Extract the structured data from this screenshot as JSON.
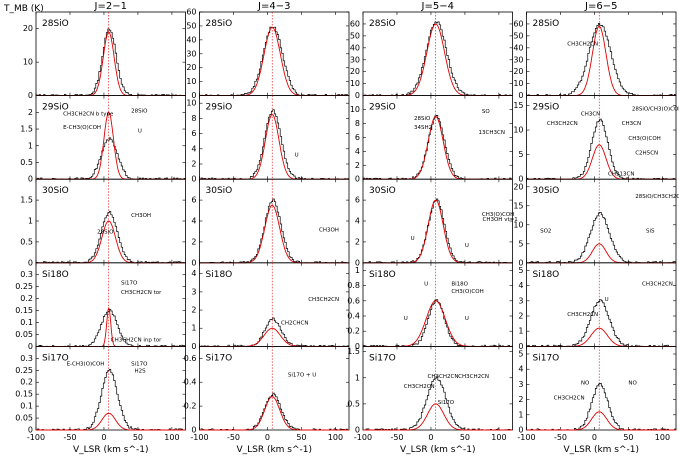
{
  "figure": {
    "ylabel": "T_MB (K)",
    "xlabel": "V_LSR (km s^-1)",
    "xlim": [
      -100,
      120
    ],
    "vsys": 7,
    "columns": [
      "J=2−1",
      "J=4−3",
      "J=5−4",
      "J=6−5"
    ],
    "rows": [
      "28SiO",
      "29SiO",
      "30SiO",
      "Si18O",
      "Si17O"
    ],
    "xticks": [
      -100,
      -50,
      0,
      50,
      100
    ]
  },
  "chart_data": [
    {
      "type": "line",
      "row": 0,
      "col": 0,
      "molecule": "28SiO",
      "ylim": [
        0,
        25
      ],
      "yticks": [
        0,
        10,
        20
      ],
      "observed": {
        "amp": 20,
        "width": 10
      },
      "model": {
        "amp": 19,
        "width": 8
      },
      "annotations": []
    },
    {
      "type": "line",
      "row": 0,
      "col": 1,
      "molecule": "28SiO",
      "ylim": [
        0,
        60
      ],
      "yticks": [
        0,
        10,
        20,
        30,
        40,
        50,
        60
      ],
      "observed": {
        "amp": 50,
        "width": 14
      },
      "model": {
        "amp": 49,
        "width": 12
      },
      "annotations": []
    },
    {
      "type": "line",
      "row": 0,
      "col": 2,
      "molecule": "28SiO",
      "ylim": [
        0,
        70
      ],
      "yticks": [
        0,
        10,
        20,
        30,
        40,
        50,
        60
      ],
      "observed": {
        "amp": 62,
        "width": 15
      },
      "model": {
        "amp": 60,
        "width": 13
      },
      "annotations": []
    },
    {
      "type": "line",
      "row": 0,
      "col": 3,
      "molecule": "28SiO",
      "ylim": [
        0,
        70
      ],
      "yticks": [
        0,
        10,
        20,
        30,
        40,
        50,
        60
      ],
      "observed": {
        "amp": 60,
        "width": 16
      },
      "model": {
        "amp": 58,
        "width": 10
      },
      "annotations": [
        {
          "text": "CH3CH2CN",
          "x": -40,
          "y": 42
        }
      ]
    },
    {
      "type": "line",
      "row": 1,
      "col": 0,
      "molecule": "29SiO",
      "ylim": [
        0,
        2.5
      ],
      "yticks": [
        0,
        0.5,
        1,
        1.5,
        2
      ],
      "observed": {
        "amp": 1.2,
        "width": 12
      },
      "model": {
        "amp": 2.0,
        "width": 7
      },
      "annotations": [
        {
          "text": "CH3CH2CN b type",
          "x": -60,
          "y": 1.9
        },
        {
          "text": "E-CH3(O)COH",
          "x": -60,
          "y": 1.5
        },
        {
          "text": "28SiO",
          "x": 40,
          "y": 2.0
        },
        {
          "text": "U",
          "x": 50,
          "y": 1.4
        }
      ]
    },
    {
      "type": "line",
      "row": 1,
      "col": 1,
      "molecule": "29SiO",
      "ylim": [
        0,
        11
      ],
      "yticks": [
        0,
        2,
        4,
        6,
        8,
        10
      ],
      "observed": {
        "amp": 9,
        "width": 12
      },
      "model": {
        "amp": 8.5,
        "width": 10
      },
      "annotations": [
        {
          "text": "U",
          "x": 40,
          "y": 3
        }
      ]
    },
    {
      "type": "line",
      "row": 1,
      "col": 2,
      "molecule": "29SiO",
      "ylim": [
        0,
        12
      ],
      "yticks": [
        0,
        2,
        4,
        6,
        8,
        10
      ],
      "observed": {
        "amp": 9,
        "width": 12
      },
      "model": {
        "amp": 9,
        "width": 11
      },
      "annotations": [
        {
          "text": "28SiO",
          "x": -25,
          "y": 8.5
        },
        {
          "text": "34SH2",
          "x": -25,
          "y": 7.2
        },
        {
          "text": "SO",
          "x": 75,
          "y": 9.5
        },
        {
          "text": "13CH3CN",
          "x": 70,
          "y": 6.5
        }
      ]
    },
    {
      "type": "line",
      "row": 1,
      "col": 3,
      "molecule": "29SiO",
      "ylim": [
        0,
        17
      ],
      "yticks": [
        0,
        5,
        10,
        15
      ],
      "observed": {
        "amp": 12,
        "width": 12
      },
      "model": {
        "amp": 7,
        "width": 10
      },
      "annotations": [
        {
          "text": "CH3CH2CN",
          "x": -70,
          "y": 11
        },
        {
          "text": "CH3CN",
          "x": -20,
          "y": 13
        },
        {
          "text": "28SiO/CH3(O)COH",
          "x": 55,
          "y": 14
        },
        {
          "text": "CH3CN",
          "x": 40,
          "y": 11
        },
        {
          "text": "CH3(O)COH",
          "x": 50,
          "y": 8
        },
        {
          "text": "C2H5CN",
          "x": 60,
          "y": 5
        },
        {
          "text": "CH313CN",
          "x": 20,
          "y": 0.8
        }
      ]
    },
    {
      "type": "line",
      "row": 2,
      "col": 0,
      "molecule": "30SiO",
      "ylim": [
        0,
        2
      ],
      "yticks": [
        0,
        0.5,
        1,
        1.5
      ],
      "observed": {
        "amp": 1.2,
        "width": 12
      },
      "model": {
        "amp": 1.0,
        "width": 10
      },
      "annotations": [
        {
          "text": "CH3OH",
          "x": 40,
          "y": 1.1
        },
        {
          "text": "28SiO",
          "x": -10,
          "y": 0.7
        }
      ]
    },
    {
      "type": "line",
      "row": 2,
      "col": 1,
      "molecule": "30SiO",
      "ylim": [
        0,
        8
      ],
      "yticks": [
        0,
        2,
        4,
        6
      ],
      "observed": {
        "amp": 6,
        "width": 12
      },
      "model": {
        "amp": 5.5,
        "width": 11
      },
      "annotations": [
        {
          "text": "CH3OH",
          "x": 95,
          "y": 3
        }
      ]
    },
    {
      "type": "line",
      "row": 2,
      "col": 2,
      "molecule": "30SiO",
      "ylim": [
        0,
        8
      ],
      "yticks": [
        0,
        2,
        4,
        6
      ],
      "observed": {
        "amp": 6,
        "width": 12
      },
      "model": {
        "amp": 6,
        "width": 11
      },
      "annotations": [
        {
          "text": "U",
          "x": -30,
          "y": 2.2
        },
        {
          "text": "U",
          "x": 50,
          "y": 1.5
        },
        {
          "text": "CH3(O)COH",
          "x": 75,
          "y": 4.5
        },
        {
          "text": "CH3OH vt=1",
          "x": 105,
          "y": 4
        }
      ]
    },
    {
      "type": "line",
      "row": 2,
      "col": 3,
      "molecule": "30SiO",
      "ylim": [
        0,
        22
      ],
      "yticks": [
        0,
        5,
        10,
        15,
        20
      ],
      "observed": {
        "amp": 13,
        "width": 14
      },
      "model": {
        "amp": 5,
        "width": 10
      },
      "annotations": [
        {
          "text": "SO2",
          "x": -80,
          "y": 8
        },
        {
          "text": "28SiO/CH3CH2CN",
          "x": 60,
          "y": 17
        },
        {
          "text": "SiS",
          "x": 100,
          "y": 8
        }
      ]
    },
    {
      "type": "line",
      "row": 3,
      "col": 0,
      "molecule": "Si18O",
      "ylim": [
        0,
        0.35
      ],
      "yticks": [
        0,
        0.05,
        0.1,
        0.15,
        0.2,
        0.25,
        0.3
      ],
      "observed": {
        "amp": 0.15,
        "width": 12
      },
      "model": {
        "amp": 0.16,
        "width": 3
      },
      "annotations": [
        {
          "text": "Si17O",
          "x": 25,
          "y": 0.26
        },
        {
          "text": "CH3CH2CN tor",
          "x": 25,
          "y": 0.22
        },
        {
          "text": "CH3CH2CN inp tor",
          "x": 10,
          "y": 0.02
        }
      ]
    },
    {
      "type": "line",
      "row": 3,
      "col": 1,
      "molecule": "Si18O",
      "ylim": [
        0,
        4.6
      ],
      "yticks": [
        0,
        1,
        2,
        3,
        4
      ],
      "observed": {
        "amp": 1.5,
        "width": 12
      },
      "model": {
        "amp": 1.0,
        "width": 12
      },
      "annotations": [
        {
          "text": "CH2CHCN",
          "x": 20,
          "y": 1.2
        },
        {
          "text": "CH3CH2CN",
          "x": 60,
          "y": 2.5
        }
      ]
    },
    {
      "type": "line",
      "row": 3,
      "col": 2,
      "molecule": "Si18O",
      "ylim": [
        0,
        1.1
      ],
      "yticks": [
        0,
        0.2,
        0.4,
        0.6,
        0.8,
        1
      ],
      "observed": {
        "amp": 0.6,
        "width": 12
      },
      "model": {
        "amp": 0.6,
        "width": 14
      },
      "annotations": [
        {
          "text": "Bi18O",
          "x": 30,
          "y": 0.8
        },
        {
          "text": "CH3(O)COH",
          "x": 30,
          "y": 0.7
        },
        {
          "text": "U",
          "x": -40,
          "y": 0.35
        },
        {
          "text": "U",
          "x": -10,
          "y": 0.8
        },
        {
          "text": "U",
          "x": 50,
          "y": 0.35
        }
      ]
    },
    {
      "type": "line",
      "row": 3,
      "col": 3,
      "molecule": "Si18O",
      "ylim": [
        0,
        5.5
      ],
      "yticks": [
        0,
        1,
        2,
        3,
        4,
        5
      ],
      "observed": {
        "amp": 3,
        "width": 14
      },
      "model": {
        "amp": 1.2,
        "width": 12
      },
      "annotations": [
        {
          "text": "CH3CH2CN",
          "x": -40,
          "y": 2
        },
        {
          "text": "CH3CH2CN",
          "x": 70,
          "y": 4
        },
        {
          "text": "U",
          "x": 15,
          "y": 3
        }
      ]
    },
    {
      "type": "line",
      "row": 4,
      "col": 0,
      "molecule": "Si17O",
      "ylim": [
        0,
        0.35
      ],
      "yticks": [
        0,
        0.05,
        0.1,
        0.15,
        0.2,
        0.25,
        0.3
      ],
      "observed": {
        "amp": 0.25,
        "width": 12
      },
      "model": {
        "amp": 0.07,
        "width": 10
      },
      "annotations": [
        {
          "text": "E-CH3(O)COH",
          "x": -55,
          "y": 0.27
        },
        {
          "text": "Si17O",
          "x": 40,
          "y": 0.27
        },
        {
          "text": "H2S",
          "x": 45,
          "y": 0.24
        }
      ]
    },
    {
      "type": "line",
      "row": 4,
      "col": 1,
      "molecule": "Si17O",
      "ylim": [
        0,
        0.7
      ],
      "yticks": [
        0,
        0.2,
        0.4,
        0.6
      ],
      "observed": {
        "amp": 0.3,
        "width": 12
      },
      "model": {
        "amp": 0.28,
        "width": 11
      },
      "annotations": [
        {
          "text": "Si17O + U",
          "x": 30,
          "y": 0.45
        }
      ]
    },
    {
      "type": "line",
      "row": 4,
      "col": 2,
      "molecule": "Si17O",
      "ylim": [
        0,
        1.6
      ],
      "yticks": [
        0,
        0.5,
        1,
        1.5
      ],
      "observed": {
        "amp": 1.0,
        "width": 14
      },
      "model": {
        "amp": 0.5,
        "width": 12
      },
      "annotations": [
        {
          "text": "CH3CH2CN",
          "x": -40,
          "y": 0.8
        },
        {
          "text": "CH3CH2CN",
          "x": -5,
          "y": 1.0
        },
        {
          "text": "CH3CH2CN",
          "x": 40,
          "y": 1.0
        },
        {
          "text": "Si17O",
          "x": 10,
          "y": 0.5
        }
      ]
    },
    {
      "type": "line",
      "row": 4,
      "col": 3,
      "molecule": "Si17O",
      "ylim": [
        0,
        5.5
      ],
      "yticks": [
        0,
        1,
        2,
        3,
        4,
        5
      ],
      "observed": {
        "amp": 3,
        "width": 12
      },
      "model": {
        "amp": 1.2,
        "width": 11
      },
      "annotations": [
        {
          "text": "NO",
          "x": -20,
          "y": 3
        },
        {
          "text": "NO",
          "x": 50,
          "y": 3
        },
        {
          "text": "CH3CH2CN",
          "x": -60,
          "y": 2
        }
      ]
    }
  ]
}
